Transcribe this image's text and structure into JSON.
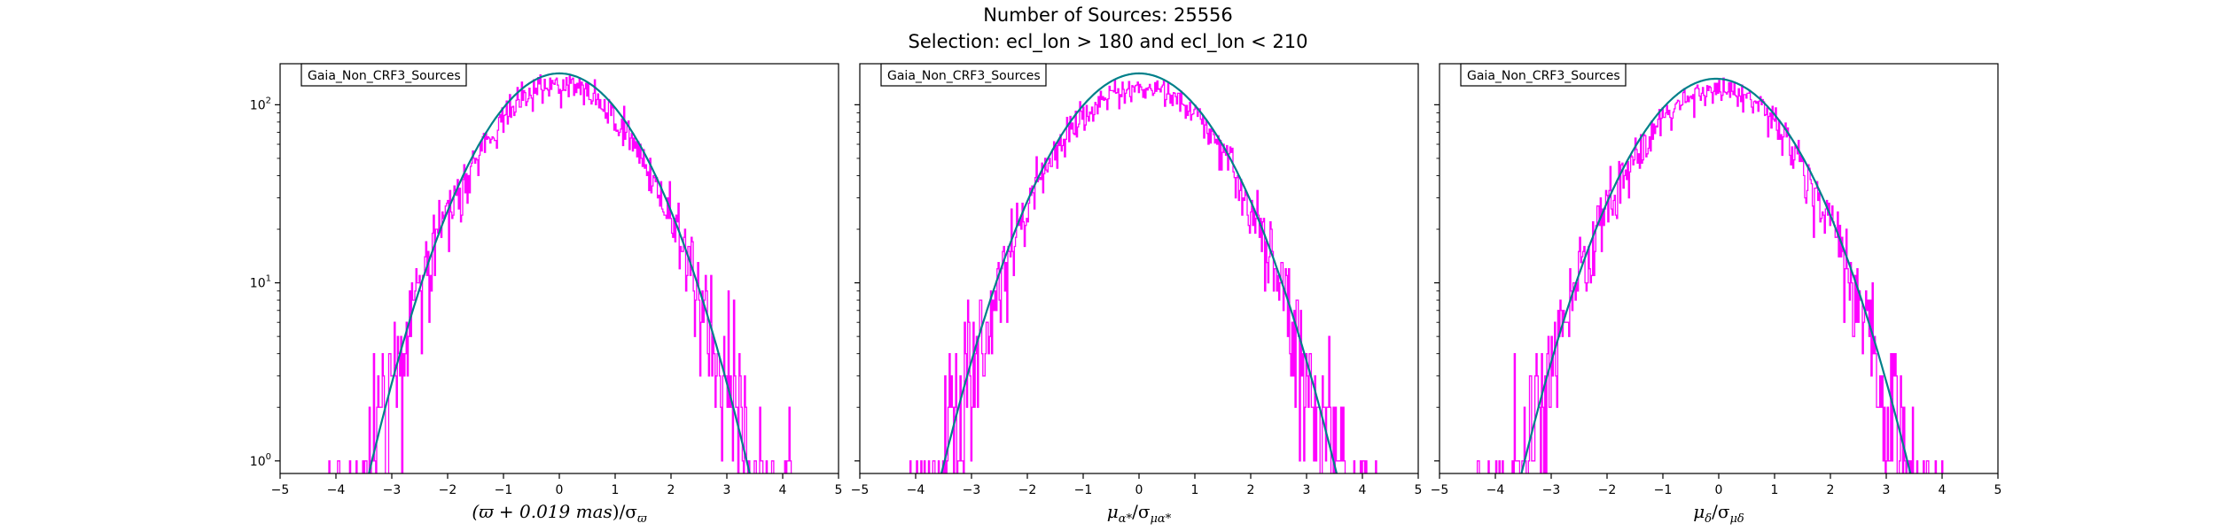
{
  "figure": {
    "title_line1": "Number of Sources: 25556",
    "title_line2": "Selection: ecl_lon > 180 and ecl_lon < 210"
  },
  "colors": {
    "histogram": "#ff00ff",
    "fit": "#00808a",
    "axes": "#000000"
  },
  "chart_data": [
    {
      "type": "histogram",
      "legend": "Gaia_Non_CRF3_Sources",
      "legend_position": "top-left",
      "xlabel": "(ϖ + 0.019 mas)/σϖ",
      "xlabel_parts": {
        "main": "(ϖ + 0.019 ",
        "unit": "mas",
        "after": ")/σ",
        "sub": "ϖ"
      },
      "xlim": [
        -5,
        5
      ],
      "ylim": [
        0.85,
        170
      ],
      "yscale": "log",
      "xticks": [
        "−5",
        "−4",
        "−3",
        "−2",
        "−1",
        "0",
        "1",
        "2",
        "3",
        "4",
        "5"
      ],
      "yticks": [
        {
          "value": 1,
          "base": "10",
          "exp": "0"
        },
        {
          "value": 10,
          "base": "10",
          "exp": "1"
        },
        {
          "value": 100,
          "base": "10",
          "exp": "2"
        }
      ],
      "fit": {
        "name": "gaussian",
        "amplitude": 150,
        "mean": 0.0,
        "sigma": 1.06
      },
      "histogram": {
        "peak": 130,
        "mean": 0.0,
        "sigma": 1.08,
        "xmin": -4.75,
        "xmax": 4.6,
        "bins": 480,
        "seed": 11
      }
    },
    {
      "type": "histogram",
      "legend": "Gaia_Non_CRF3_Sources",
      "legend_position": "top-left",
      "xlabel": "μα*/σμα*",
      "xlabel_parts": {
        "main": "μ",
        "sub1": "α*",
        "after": "/σ",
        "sub": "μα*"
      },
      "xlim": [
        -5,
        5
      ],
      "ylim": [
        0.85,
        170
      ],
      "yscale": "log",
      "xticks": [
        "−5",
        "−4",
        "−3",
        "−2",
        "−1",
        "0",
        "1",
        "2",
        "3",
        "4",
        "5"
      ],
      "yticks": [
        {
          "value": 1,
          "base": "10",
          "exp": "0"
        },
        {
          "value": 10,
          "base": "10",
          "exp": "1"
        },
        {
          "value": 100,
          "base": "10",
          "exp": "2"
        }
      ],
      "fit": {
        "name": "gaussian",
        "amplitude": 150,
        "mean": 0.0,
        "sigma": 1.1
      },
      "histogram": {
        "peak": 130,
        "mean": 0.0,
        "sigma": 1.12,
        "xmin": -4.55,
        "xmax": 4.8,
        "bins": 480,
        "seed": 23
      }
    },
    {
      "type": "histogram",
      "legend": "Gaia_Non_CRF3_Sources",
      "legend_position": "top-left",
      "xlabel": "μδ/σμδ",
      "xlabel_parts": {
        "main": "μ",
        "sub1": "δ",
        "after": "/σ",
        "sub": "μδ"
      },
      "xlim": [
        -5,
        5
      ],
      "ylim": [
        0.85,
        170
      ],
      "yscale": "log",
      "xticks": [
        "−5",
        "−4",
        "−3",
        "−2",
        "−1",
        "0",
        "1",
        "2",
        "3",
        "4",
        "5"
      ],
      "yticks": [
        {
          "value": 1,
          "base": "10",
          "exp": "0"
        },
        {
          "value": 10,
          "base": "10",
          "exp": "1"
        },
        {
          "value": 100,
          "base": "10",
          "exp": "2"
        }
      ],
      "fit": {
        "name": "gaussian",
        "amplitude": 140,
        "mean": -0.05,
        "sigma": 1.09
      },
      "histogram": {
        "peak": 122,
        "mean": -0.05,
        "sigma": 1.11,
        "xmin": -4.85,
        "xmax": 4.5,
        "bins": 480,
        "seed": 37
      }
    }
  ]
}
